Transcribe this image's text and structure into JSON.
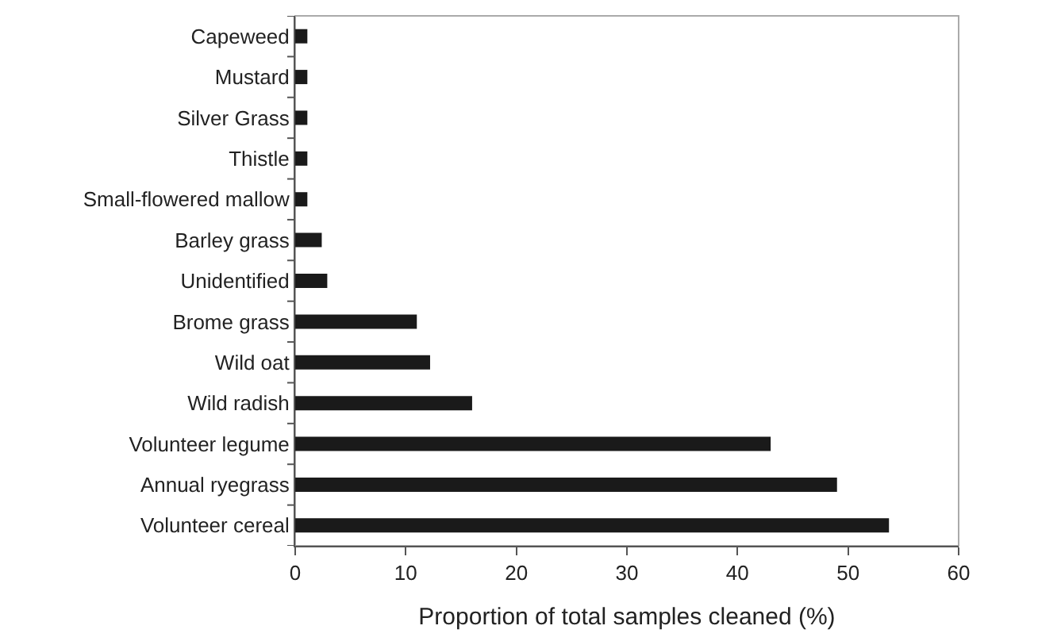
{
  "chart_data": {
    "type": "bar",
    "orientation": "horizontal",
    "xlabel": "Proportion of total samples cleaned (%)",
    "categories": [
      "Capeweed",
      "Mustard",
      "Silver Grass",
      "Thistle",
      "Small-flowered mallow",
      "Barley grass",
      "Unidentified",
      "Brome grass",
      "Wild oat",
      "Wild radish",
      "Volunteer legume",
      "Annual ryegrass",
      "Volunteer cereal"
    ],
    "values": [
      1.1,
      1.1,
      1.1,
      1.1,
      1.1,
      2.4,
      2.9,
      11,
      12.2,
      16,
      43,
      49,
      53.7
    ],
    "color": "#1a1a1a",
    "xlim": [
      0,
      60
    ],
    "xticks": [
      0,
      10,
      20,
      30,
      40,
      50,
      60
    ],
    "grid": false,
    "legend": false
  }
}
